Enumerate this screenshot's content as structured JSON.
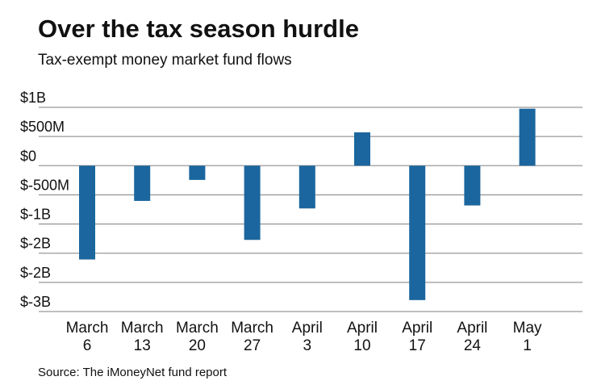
{
  "chart_data": {
    "type": "bar",
    "title": "Over the tax season hurdle",
    "subtitle": "Tax-exempt money market fund flows",
    "source": "Source: The iMoneyNet fund report",
    "categories": [
      [
        "March",
        "6"
      ],
      [
        "March",
        "13"
      ],
      [
        "March",
        "20"
      ],
      [
        "March",
        "27"
      ],
      [
        "April",
        "3"
      ],
      [
        "April",
        "10"
      ],
      [
        "April",
        "17"
      ],
      [
        "April",
        "24"
      ],
      [
        "May",
        "1"
      ]
    ],
    "values": [
      -1608,
      -604,
      -244,
      -1272,
      -733,
      571,
      -2304,
      -682,
      977
    ],
    "units": "USD millions",
    "ylim": [
      -2500,
      1000
    ],
    "yticks": [
      1000,
      500,
      0,
      -500,
      -1000,
      -1500,
      -2000,
      -2500
    ],
    "ytick_labels": [
      "$1B",
      "$500M",
      "$0",
      "$-500M",
      "$-1B",
      "$-2B",
      "$-2B",
      "$-3B"
    ],
    "grid": true,
    "bar_color": "#1b669e",
    "grid_color": "#999999"
  }
}
